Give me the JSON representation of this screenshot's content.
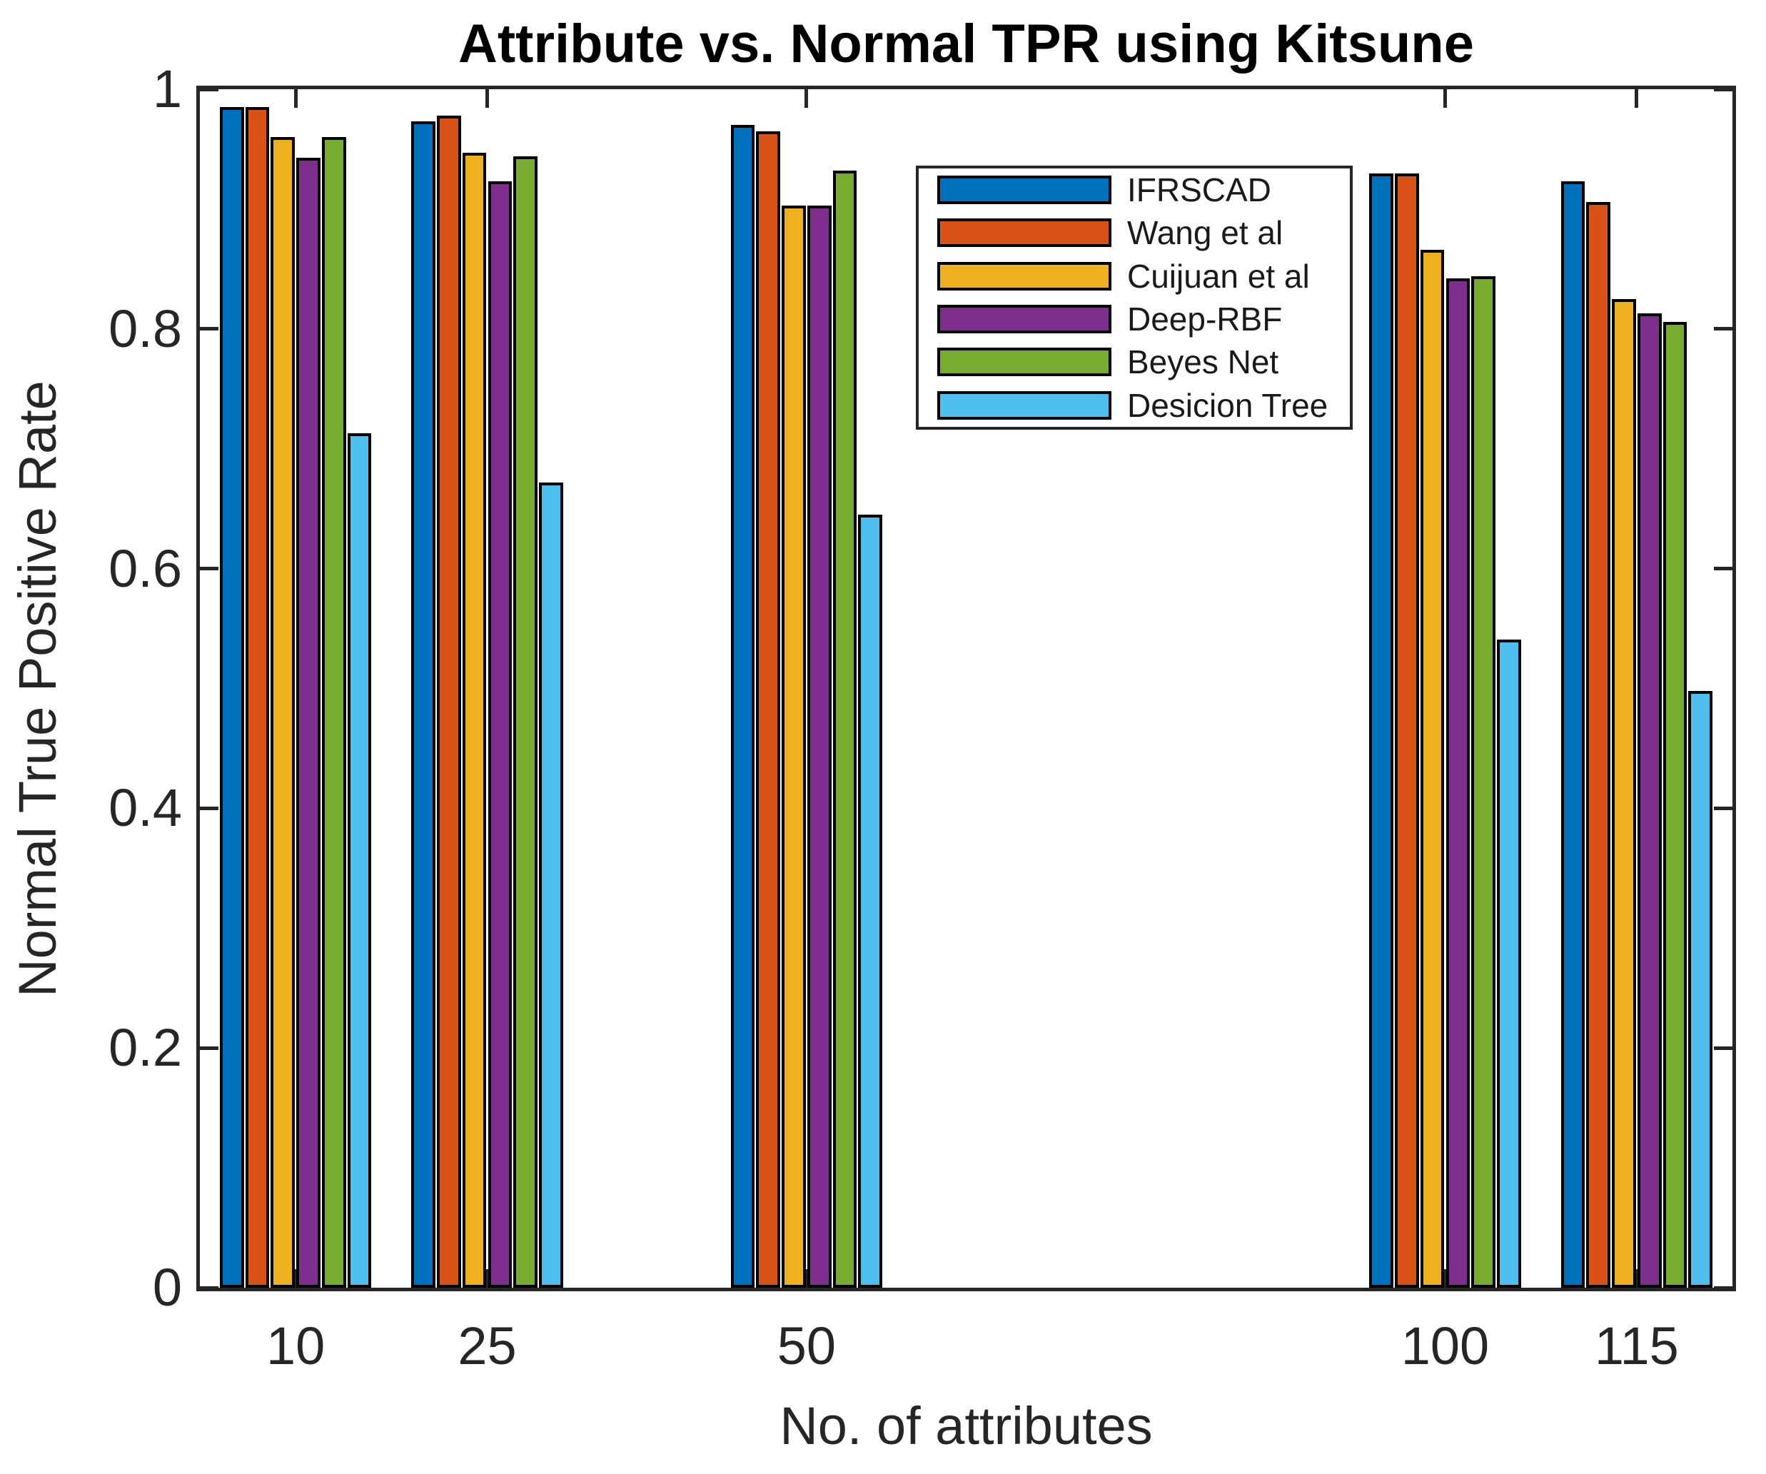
{
  "figure": {
    "background_color": "#ffffff",
    "axis_color": "#262626",
    "bar_edge_color": "#000000"
  },
  "chart_data": {
    "type": "bar",
    "title": "Attribute vs. Normal TPR using Kitsune",
    "xlabel": "No. of attributes",
    "ylabel": "Normal True Positive Rate",
    "categories": [
      10,
      25,
      50,
      100,
      115
    ],
    "x_axis": {
      "min": 2.5,
      "max": 122.5,
      "tick_values": [
        10,
        25,
        50,
        100,
        115
      ],
      "tick_labels": [
        "10",
        "25",
        "50",
        "100",
        "115"
      ]
    },
    "y_axis": {
      "min": 0,
      "max": 1,
      "tick_values": [
        0,
        0.2,
        0.4,
        0.6,
        0.8,
        1
      ],
      "tick_labels": [
        "0",
        "0.2",
        "0.4",
        "0.6",
        "0.8",
        "1"
      ]
    },
    "grid": false,
    "group_width_units": 12,
    "legend_position": "inside-upper-middle",
    "series": [
      {
        "name": "IFRSCAD",
        "color": "#0072BD",
        "values": [
          0.985,
          0.973,
          0.97,
          0.93,
          0.923
        ]
      },
      {
        "name": "Wang et al",
        "color": "#D95319",
        "values": [
          0.985,
          0.978,
          0.965,
          0.93,
          0.906
        ]
      },
      {
        "name": "Cuijuan et al",
        "color": "#EDB120",
        "values": [
          0.96,
          0.947,
          0.903,
          0.866,
          0.825
        ]
      },
      {
        "name": "Deep-RBF",
        "color": "#7E2F8E",
        "values": [
          0.943,
          0.923,
          0.903,
          0.842,
          0.813
        ]
      },
      {
        "name": "Beyes Net",
        "color": "#77AC30",
        "values": [
          0.96,
          0.944,
          0.932,
          0.844,
          0.806
        ]
      },
      {
        "name": "Desicion Tree",
        "color": "#4DBEEE",
        "values": [
          0.713,
          0.672,
          0.645,
          0.541,
          0.498
        ]
      }
    ]
  }
}
